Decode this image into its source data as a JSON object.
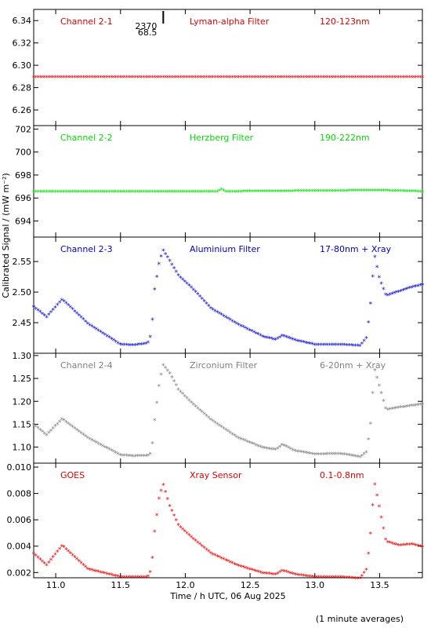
{
  "x_axis": {
    "label": "Time / h UTC, 06 Aug 2025",
    "range": [
      10.83,
      13.83
    ],
    "ticks": [
      11.0,
      11.5,
      12.0,
      12.5,
      13.0,
      13.5
    ],
    "tick_labels": [
      "11.0",
      "11.5",
      "12.0",
      "12.5",
      "13.0",
      "13.5"
    ]
  },
  "y_axis_label": "Calibrated Signal / (mW m⁻²)",
  "footnote": "(1 minute averages)",
  "annotation": {
    "text": [
      "2370",
      "68.5"
    ],
    "x": 11.83
  },
  "marker_symbol": "*",
  "chart_data": [
    {
      "type": "scatter",
      "channel": "Channel 2-1",
      "filter": "Lyman-alpha Filter",
      "band": "120-123nm",
      "color": "#e00000",
      "ylim": [
        6.246,
        6.35
      ],
      "yticks": [
        6.26,
        6.28,
        6.3,
        6.32,
        6.34
      ],
      "ytick_labels": [
        "6.26",
        "6.28",
        "6.30",
        "6.32",
        "6.34"
      ],
      "x": [
        10.83,
        13.83
      ],
      "y": [
        6.289,
        6.289
      ]
    },
    {
      "type": "scatter",
      "channel": "Channel 2-2",
      "filter": "Herzberg Filter",
      "band": "190-222nm",
      "color": "#00dd00",
      "ylim": [
        692.6,
        702.3
      ],
      "yticks": [
        694,
        696,
        698,
        700,
        702
      ],
      "ytick_labels": [
        "694",
        "696",
        "698",
        "700",
        "702"
      ],
      "x": [
        10.83,
        12.25,
        12.28,
        12.31,
        13.5,
        13.83
      ],
      "y": [
        696.5,
        696.5,
        696.7,
        696.5,
        696.6,
        696.5
      ]
    },
    {
      "type": "scatter",
      "channel": "Channel 2-3",
      "filter": "Aluminium Filter",
      "band": "17-80nm + Xray",
      "color": "#0000c8",
      "ylim": [
        2.4,
        2.59
      ],
      "yticks": [
        2.45,
        2.5,
        2.55
      ],
      "ytick_labels": [
        "2.45",
        "2.50",
        "2.55"
      ],
      "x": [
        10.83,
        10.93,
        11.05,
        11.25,
        11.5,
        11.6,
        11.71,
        11.74,
        11.76,
        11.8,
        11.83,
        11.88,
        11.95,
        12.05,
        12.2,
        12.4,
        12.6,
        12.7,
        12.75,
        12.85,
        13.0,
        13.2,
        13.35,
        13.4,
        13.43,
        13.46,
        13.5,
        13.55,
        13.65,
        13.75,
        13.83
      ],
      "y": [
        2.475,
        2.458,
        2.487,
        2.447,
        2.413,
        2.412,
        2.415,
        2.431,
        2.499,
        2.549,
        2.567,
        2.55,
        2.525,
        2.506,
        2.472,
        2.447,
        2.426,
        2.421,
        2.428,
        2.42,
        2.413,
        2.413,
        2.411,
        2.425,
        2.48,
        2.56,
        2.52,
        2.493,
        2.5,
        2.507,
        2.511
      ]
    },
    {
      "type": "scatter",
      "channel": "Channel 2-4",
      "filter": "Zirconium Filter",
      "band": "6-20nm + Xray",
      "color": "#7f7f7f",
      "ylim": [
        1.065,
        1.305
      ],
      "yticks": [
        1.1,
        1.15,
        1.2,
        1.25,
        1.3
      ],
      "ytick_labels": [
        "1.10",
        "1.15",
        "1.20",
        "1.25",
        "1.30"
      ],
      "x": [
        10.83,
        10.93,
        11.05,
        11.25,
        11.5,
        11.6,
        11.71,
        11.74,
        11.76,
        11.8,
        11.83,
        11.88,
        11.95,
        12.05,
        12.2,
        12.4,
        12.6,
        12.7,
        12.75,
        12.85,
        13.0,
        13.2,
        13.35,
        13.4,
        13.43,
        13.46,
        13.5,
        13.55,
        13.65,
        13.75,
        13.83
      ],
      "y": [
        1.148,
        1.125,
        1.16,
        1.118,
        1.081,
        1.079,
        1.08,
        1.086,
        1.15,
        1.24,
        1.278,
        1.26,
        1.223,
        1.195,
        1.158,
        1.12,
        1.097,
        1.093,
        1.104,
        1.09,
        1.083,
        1.084,
        1.077,
        1.088,
        1.15,
        1.27,
        1.23,
        1.18,
        1.185,
        1.189,
        1.193
      ]
    },
    {
      "type": "scatter",
      "channel": "GOES",
      "filter": "Xray Sensor",
      "band": "0.1-0.8nm",
      "color": "#e00000",
      "ylim": [
        0.0016,
        0.0103
      ],
      "yticks": [
        0.002,
        0.004,
        0.006,
        0.008,
        0.01
      ],
      "ytick_labels": [
        "0.002",
        "0.004",
        "0.006",
        "0.008",
        "0.010"
      ],
      "x": [
        10.83,
        10.93,
        11.05,
        11.25,
        11.5,
        11.6,
        11.71,
        11.74,
        11.76,
        11.8,
        11.83,
        11.88,
        11.95,
        12.05,
        12.2,
        12.4,
        12.6,
        12.7,
        12.75,
        12.85,
        13.0,
        13.2,
        13.35,
        13.4,
        13.43,
        13.46,
        13.5,
        13.55,
        13.65,
        13.75,
        13.83
      ],
      "y": [
        0.0034,
        0.0025,
        0.004,
        0.0022,
        0.0016,
        0.0016,
        0.0016,
        0.0022,
        0.0048,
        0.0078,
        0.0086,
        0.007,
        0.0055,
        0.0046,
        0.0034,
        0.0025,
        0.0019,
        0.0018,
        0.0021,
        0.0018,
        0.0016,
        0.0016,
        0.0015,
        0.0022,
        0.0049,
        0.0088,
        0.0068,
        0.0043,
        0.004,
        0.0041,
        0.0039
      ]
    }
  ]
}
